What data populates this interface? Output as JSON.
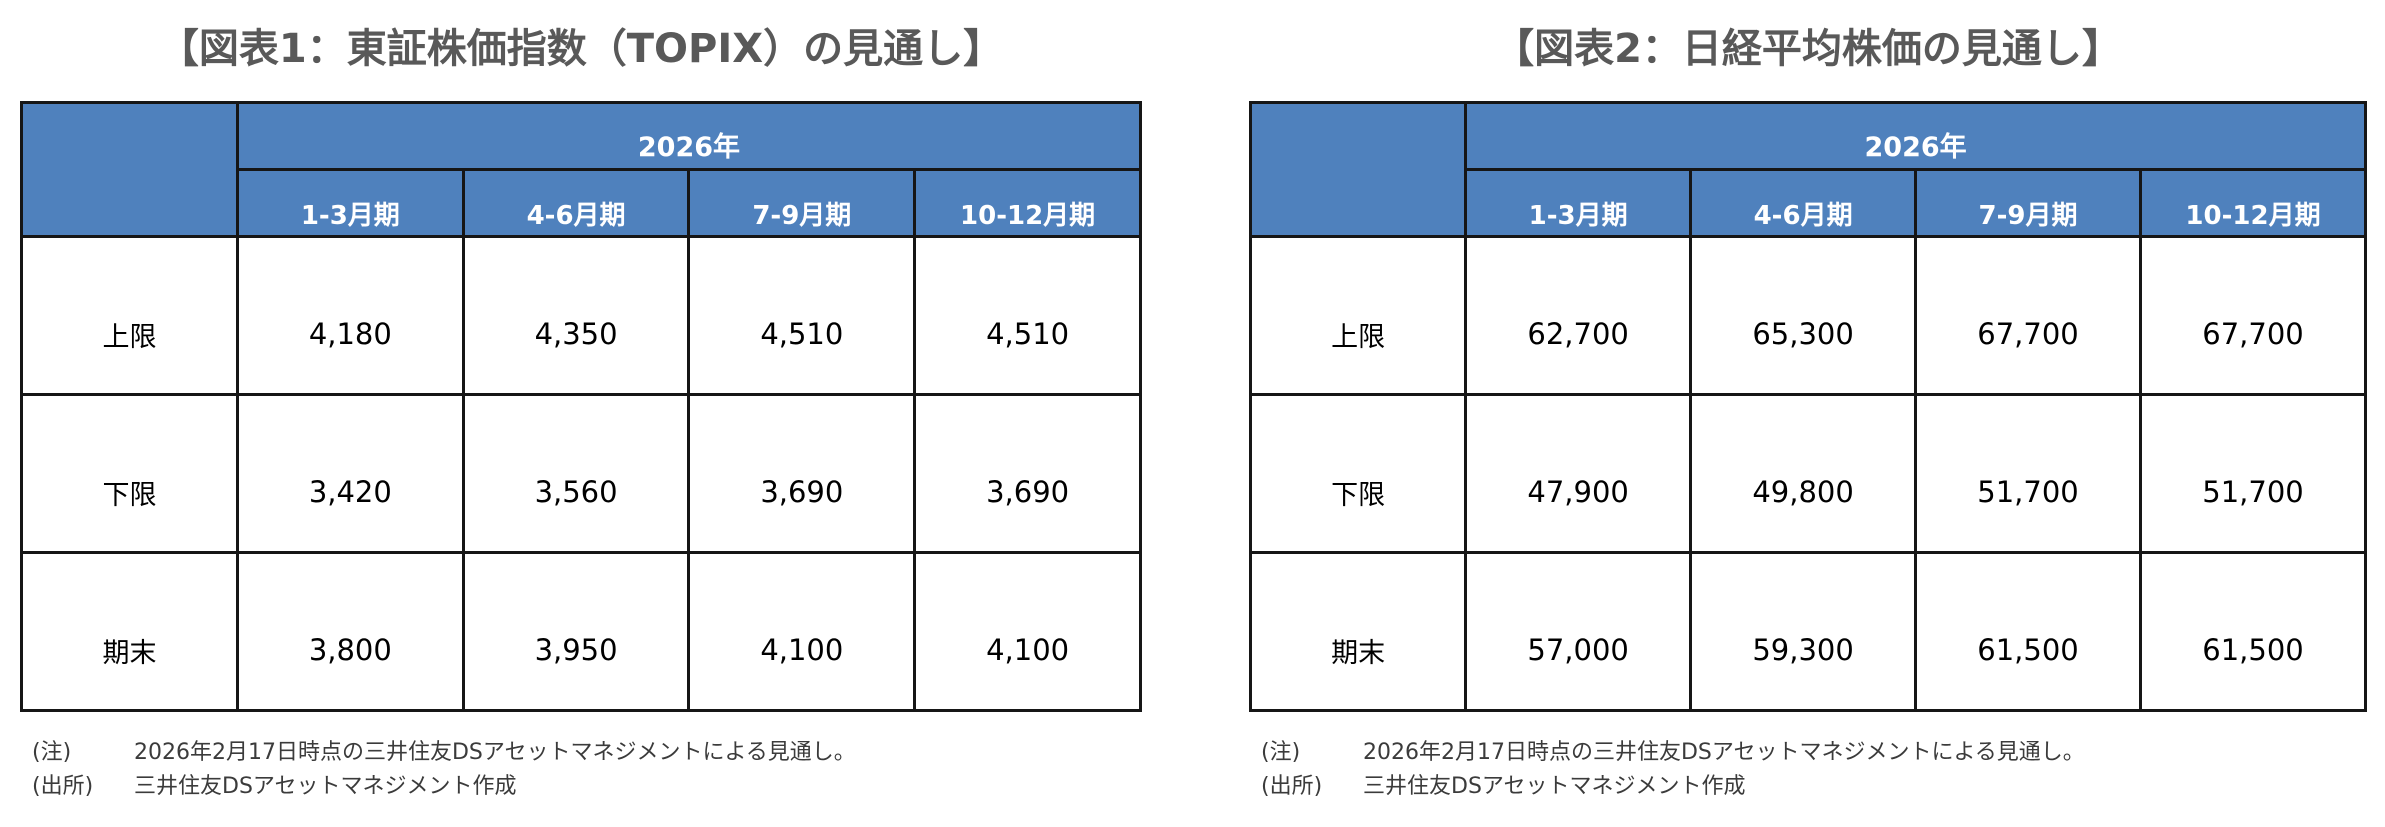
{
  "page": {
    "background": "#ffffff",
    "header_blue": "#4f81bd",
    "border_color": "#161616",
    "title_color": "#595959",
    "note_color": "#3b3b3b"
  },
  "figure1": {
    "title": "【図表1：東証株価指数（TOPIX）の見通し】",
    "year_header": "2026年",
    "quarter_headers": [
      "1-3月期",
      "4-6月期",
      "7-9月期",
      "10-12月期"
    ],
    "rows": [
      {
        "label": "上限",
        "values": [
          "4,180",
          "4,350",
          "4,510",
          "4,510"
        ]
      },
      {
        "label": "下限",
        "values": [
          "3,420",
          "3,560",
          "3,690",
          "3,690"
        ]
      },
      {
        "label": "期末",
        "values": [
          "3,800",
          "3,950",
          "4,100",
          "4,100"
        ]
      }
    ],
    "notes": [
      {
        "label": "(注)",
        "text": "2026年2月17日時点の三井住友DSアセットマネジメントによる見通し。"
      },
      {
        "label": "(出所)",
        "text": "三井住友DSアセットマネジメント作成"
      }
    ]
  },
  "figure2": {
    "title": "【図表2：日経平均株価の見通し】",
    "year_header": "2026年",
    "quarter_headers": [
      "1-3月期",
      "4-6月期",
      "7-9月期",
      "10-12月期"
    ],
    "rows": [
      {
        "label": "上限",
        "values": [
          "62,700",
          "65,300",
          "67,700",
          "67,700"
        ]
      },
      {
        "label": "下限",
        "values": [
          "47,900",
          "49,800",
          "51,700",
          "51,700"
        ]
      },
      {
        "label": "期末",
        "values": [
          "57,000",
          "59,300",
          "61,500",
          "61,500"
        ]
      }
    ],
    "notes": [
      {
        "label": "(注)",
        "text": "2026年2月17日時点の三井住友DSアセットマネジメントによる見通し。"
      },
      {
        "label": "(出所)",
        "text": "三井住友DSアセットマネジメント作成"
      }
    ]
  },
  "chart_data": [
    {
      "type": "table",
      "title": "図表1：東証株価指数（TOPIX）の見通し",
      "columns": [
        "",
        "2026年 1-3月期",
        "2026年 4-6月期",
        "2026年 7-9月期",
        "2026年 10-12月期"
      ],
      "rows": [
        [
          "上限",
          4180,
          4350,
          4510,
          4510
        ],
        [
          "下限",
          3420,
          3560,
          3690,
          3690
        ],
        [
          "期末",
          3800,
          3950,
          4100,
          4100
        ]
      ]
    },
    {
      "type": "table",
      "title": "図表2：日経平均株価の見通し",
      "columns": [
        "",
        "2026年 1-3月期",
        "2026年 4-6月期",
        "2026年 7-9月期",
        "2026年 10-12月期"
      ],
      "rows": [
        [
          "上限",
          62700,
          65300,
          67700,
          67700
        ],
        [
          "下限",
          47900,
          49800,
          51700,
          51700
        ],
        [
          "期末",
          57000,
          59300,
          61500,
          61500
        ]
      ]
    }
  ]
}
